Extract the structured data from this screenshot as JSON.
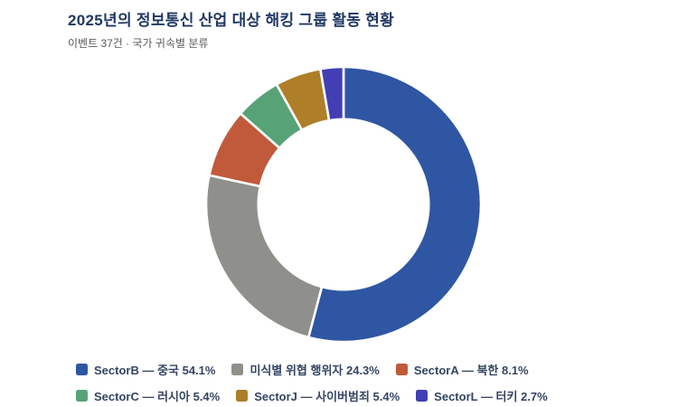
{
  "header": {
    "title": "2025년의 정보통신 산업 대상 해킹 그룹 활동 현황",
    "subtitle": "이벤트 37건 · 국가 귀속별 분류"
  },
  "colors": {
    "background": "#ffffff",
    "title_text": "#203864",
    "subtitle_text": "#595959",
    "legend_text": "#344563",
    "segment_separator": "#ffffff"
  },
  "chart_data": {
    "type": "pie",
    "subtype": "donut",
    "title": "2025년의 정보통신 산업 대상 해킹 그룹 활동 현황",
    "subtitle": "이벤트 37건 · 국가 귀속별 분류",
    "total_events": 37,
    "unit": "%",
    "start_angle": "top",
    "direction": "clockwise",
    "inner_radius_ratio": 0.62,
    "legend_position": "bottom-left",
    "series": [
      {
        "id": "sectorB",
        "label": "SectorB — 중국",
        "value": 54.1,
        "color": "#2f56a3",
        "legend": "SectorB — 중국 54.1%"
      },
      {
        "id": "unidentified",
        "label": "미식별 위협 행위자",
        "value": 24.3,
        "color": "#8f8f8b",
        "legend": "미식별 위협 행위자 24.3%"
      },
      {
        "id": "sectorA",
        "label": "SectorA — 북한",
        "value": 8.1,
        "color": "#c05a3a",
        "legend": "SectorA — 북한 8.1%"
      },
      {
        "id": "sectorC",
        "label": "SectorC — 러시아",
        "value": 5.4,
        "color": "#57a377",
        "legend": "SectorC — 러시아 5.4%"
      },
      {
        "id": "sectorJ",
        "label": "SectorJ — 사이버범죄",
        "value": 5.4,
        "color": "#ae7e28",
        "legend": "SectorJ — 사이버범죄 5.4%"
      },
      {
        "id": "sectorL",
        "label": "SectorL — 터키",
        "value": 2.7,
        "color": "#423fb4",
        "legend": "SectorL — 터키 2.7%"
      }
    ]
  }
}
